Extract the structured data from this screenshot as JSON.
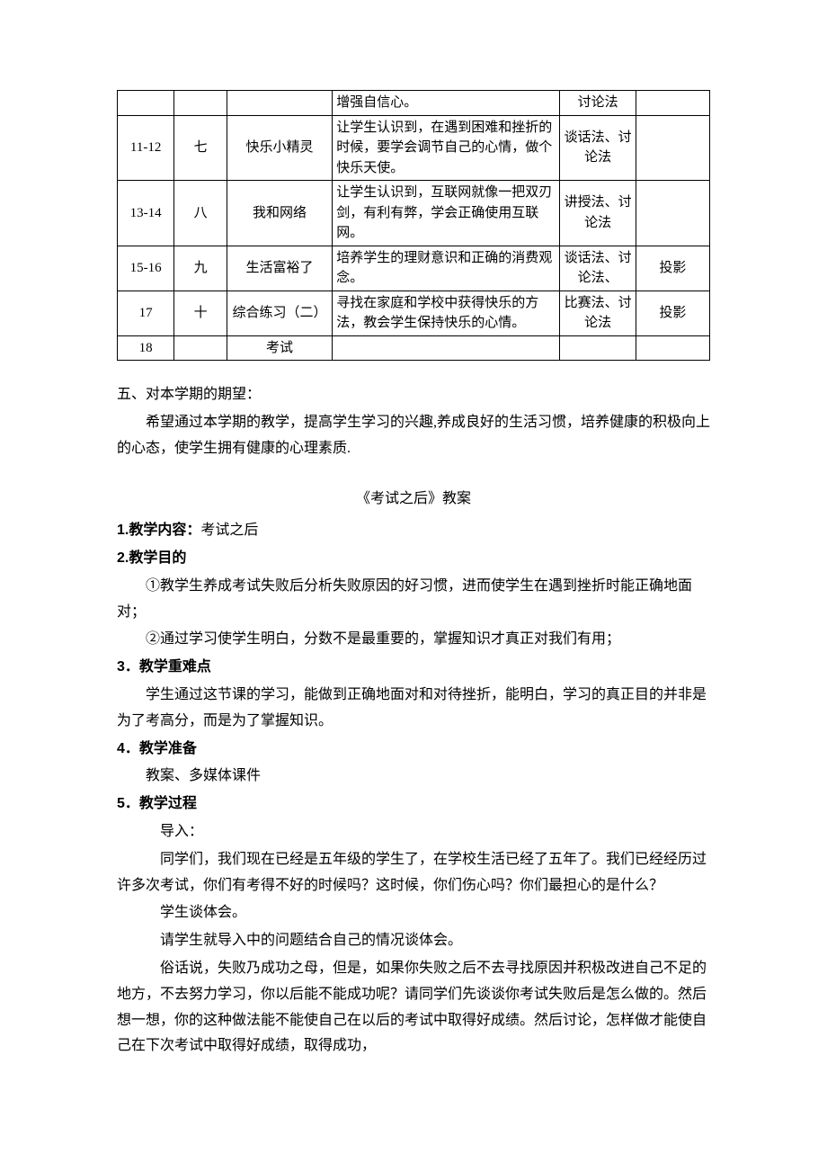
{
  "table": {
    "rows": [
      {
        "week": "",
        "unit": "",
        "topic": "",
        "goal": "增强自信心。",
        "method": "讨论法",
        "media": ""
      },
      {
        "week": "11-12",
        "unit": "七",
        "topic": "快乐小精灵",
        "goal": "让学生认识到，在遇到困难和挫折的时候，要学会调节自己的心情，做个快乐天使。",
        "method": "谈话法、讨论法",
        "media": ""
      },
      {
        "week": "13-14",
        "unit": "八",
        "topic": "我和网络",
        "goal": "让学生认识到，互联网就像一把双刃剑，有利有弊，学会正确使用互联网。",
        "method": "讲授法、讨论法",
        "media": ""
      },
      {
        "week": "15-16",
        "unit": "九",
        "topic": "生活富裕了",
        "goal": "培养学生的理财意识和正确的消费观念。",
        "method": "谈话法、讨论法、",
        "media": "投影"
      },
      {
        "week": "17",
        "unit": "十",
        "topic": "综合练习（二）",
        "goal": "寻找在家庭和学校中获得快乐的方法，教会学生保持快乐的心情。",
        "method": "比赛法、讨论法",
        "media": "投影"
      },
      {
        "week": "18",
        "unit": "",
        "topic": "考试",
        "goal": "",
        "method": "",
        "media": ""
      }
    ]
  },
  "section5": {
    "heading": "五、对本学期的期望：",
    "body": "希望通过本学期的教学，提高学生学习的兴趣,养成良好的生活习惯，培养健康的积极向上的心态，使学生拥有健康的心理素质."
  },
  "lesson": {
    "title": "《考试之后》教案",
    "s1_label": "1.教学内容：",
    "s1_value": "考试之后",
    "s2_label": "2.教学目的",
    "s2_p1": "①教学生养成考试失败后分析失败原因的好习惯，进而使学生在遇到挫折时能正确地面对；",
    "s2_p2": "②通过学习使学生明白，分数不是最重要的，掌握知识才真正对我们有用；",
    "s3_label": "3．教学重难点",
    "s3_body": "学生通过这节课的学习，能做到正确地面对和对待挫折，能明白，学习的真正目的并非是为了考高分，而是为了掌握知识。",
    "s4_label": "4．教学准备",
    "s4_body": "教案、多媒体课件",
    "s5_label": "5．教学过程",
    "s5_p1": "导入：",
    "s5_p2": "同学们，我们现在已经是五年级的学生了，在学校生活已经了五年了。我们已经经历过许多次考试，你们有考得不好的时候吗？这时候，你们伤心吗？你们最担心的是什么？",
    "s5_p3": "学生谈体会。",
    "s5_p4": "请学生就导入中的问题结合自己的情况谈体会。",
    "s5_p5": "俗话说，失败乃成功之母，但是，如果你失败之后不去寻找原因并积极改进自己不足的地方，不去努力学习，你以后能不能成功呢？请同学们先谈谈你考试失败后是怎么做的。然后想一想，你的这种做法能不能使自己在以后的考试中取得好成绩。然后讨论，怎样做才能使自己在下次考试中取得好成绩，取得成功，"
  }
}
